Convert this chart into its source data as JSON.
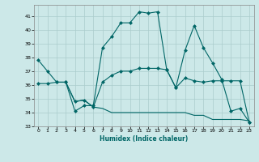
{
  "xlabel": "Humidex (Indice chaleur)",
  "bg_color": "#cce8e8",
  "line_color": "#006666",
  "grid_color": "#aacccc",
  "xlim": [
    -0.5,
    23.5
  ],
  "ylim": [
    33,
    41.8
  ],
  "yticks": [
    33,
    34,
    35,
    36,
    37,
    38,
    39,
    40,
    41
  ],
  "xticks": [
    0,
    1,
    2,
    3,
    4,
    5,
    6,
    7,
    8,
    9,
    10,
    11,
    12,
    13,
    14,
    15,
    16,
    17,
    18,
    19,
    20,
    21,
    22,
    23
  ],
  "line1_x": [
    0,
    1,
    2,
    3,
    4,
    5,
    6,
    7,
    8,
    9,
    10,
    11,
    12,
    13,
    14,
    15,
    16,
    17,
    18,
    19,
    20,
    21,
    22,
    23
  ],
  "line1_y": [
    37.8,
    37.0,
    36.2,
    36.2,
    34.1,
    34.5,
    34.5,
    38.7,
    39.5,
    40.5,
    40.5,
    41.3,
    41.2,
    41.3,
    37.1,
    35.8,
    38.5,
    40.3,
    38.7,
    37.6,
    36.4,
    34.1,
    34.3,
    33.3
  ],
  "line2_x": [
    0,
    1,
    2,
    3,
    4,
    5,
    6,
    7,
    8,
    9,
    10,
    11,
    12,
    13,
    14,
    15,
    16,
    17,
    18,
    19,
    20,
    21,
    22,
    23
  ],
  "line2_y": [
    36.1,
    36.1,
    36.2,
    36.2,
    34.8,
    34.9,
    34.4,
    36.2,
    36.7,
    37.0,
    37.0,
    37.2,
    37.2,
    37.2,
    37.1,
    35.8,
    36.5,
    36.3,
    36.2,
    36.3,
    36.3,
    36.3,
    36.3,
    33.3
  ],
  "line3_x": [
    2,
    3,
    4,
    5,
    6,
    7,
    8,
    9,
    10,
    11,
    12,
    13,
    14,
    15,
    16,
    17,
    18,
    19,
    20,
    21,
    22,
    23
  ],
  "line3_y": [
    36.2,
    36.2,
    34.8,
    34.9,
    34.4,
    34.3,
    34.0,
    34.0,
    34.0,
    34.0,
    34.0,
    34.0,
    34.0,
    34.0,
    34.0,
    33.8,
    33.8,
    33.5,
    33.5,
    33.5,
    33.5,
    33.4
  ]
}
